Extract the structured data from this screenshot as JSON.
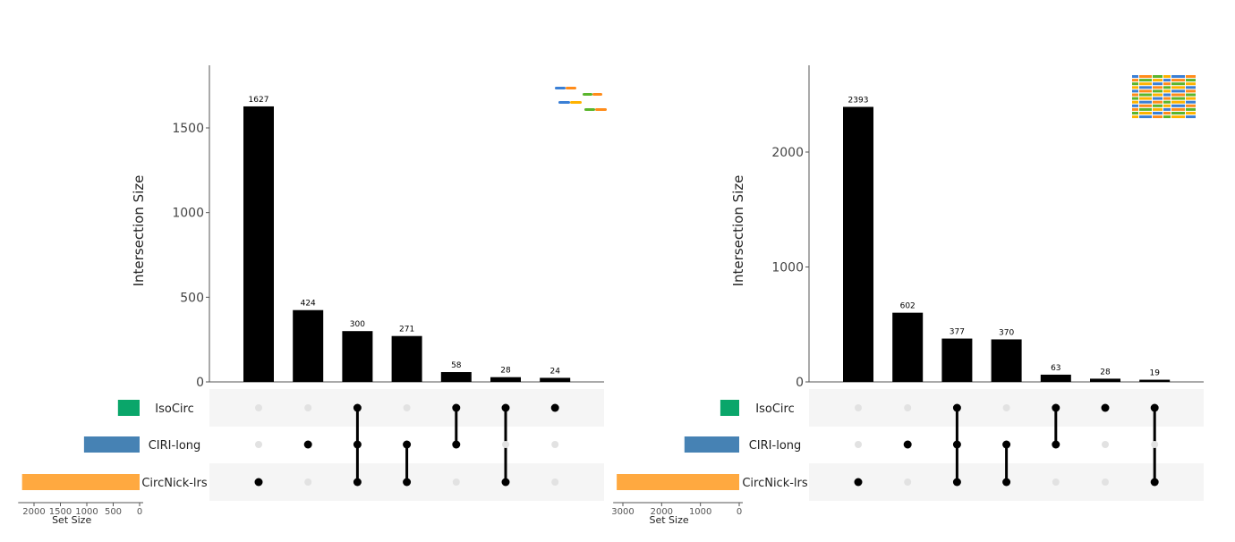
{
  "chart_data": [
    {
      "type": "upset",
      "ylabel": "Intersection Size",
      "set_size_label": "Set Size",
      "sets": [
        {
          "name": "IsoCirc",
          "size": 410,
          "color": "#0aa66a"
        },
        {
          "name": "CIRI-long",
          "size": 1053,
          "color": "#4682b4"
        },
        {
          "name": "CircNick-lrs",
          "size": 2226,
          "color": "#ffa940"
        }
      ],
      "intersections": [
        {
          "sets": [
            "CircNick-lrs"
          ],
          "value": 1627
        },
        {
          "sets": [
            "CIRI-long"
          ],
          "value": 424
        },
        {
          "sets": [
            "IsoCirc",
            "CIRI-long",
            "CircNick-lrs"
          ],
          "value": 300
        },
        {
          "sets": [
            "CIRI-long",
            "CircNick-lrs"
          ],
          "value": 271
        },
        {
          "sets": [
            "IsoCirc",
            "CIRI-long"
          ],
          "value": 58
        },
        {
          "sets": [
            "IsoCirc",
            "CircNick-lrs"
          ],
          "value": 28
        },
        {
          "sets": [
            "IsoCirc"
          ],
          "value": 24
        }
      ],
      "yticks": [
        0,
        500,
        1000,
        1500
      ],
      "ylim": [
        0,
        1800
      ],
      "set_size_ticks": [
        2000,
        1500,
        1000,
        500,
        0
      ],
      "set_size_lim": [
        0,
        2300
      ],
      "icon": "small-reads-icon"
    },
    {
      "type": "upset",
      "ylabel": "Intersection Size",
      "set_size_label": "Set Size",
      "sets": [
        {
          "name": "IsoCirc",
          "size": 487,
          "color": "#0aa66a"
        },
        {
          "name": "CIRI-long",
          "size": 1412,
          "color": "#4682b4"
        },
        {
          "name": "CircNick-lrs",
          "size": 3159,
          "color": "#ffa940"
        }
      ],
      "intersections": [
        {
          "sets": [
            "CircNick-lrs"
          ],
          "value": 2393
        },
        {
          "sets": [
            "CIRI-long"
          ],
          "value": 602
        },
        {
          "sets": [
            "IsoCirc",
            "CIRI-long",
            "CircNick-lrs"
          ],
          "value": 377
        },
        {
          "sets": [
            "CIRI-long",
            "CircNick-lrs"
          ],
          "value": 370
        },
        {
          "sets": [
            "IsoCirc",
            "CIRI-long"
          ],
          "value": 63
        },
        {
          "sets": [
            "IsoCirc"
          ],
          "value": 28
        },
        {
          "sets": [
            "IsoCirc",
            "CircNick-lrs"
          ],
          "value": 19
        }
      ],
      "yticks": [
        0,
        1000,
        2000
      ],
      "ylim": [
        0,
        2750
      ],
      "set_size_ticks": [
        3000,
        2000,
        1000,
        0
      ],
      "set_size_lim": [
        0,
        3250
      ],
      "icon": "many-reads-icon"
    }
  ]
}
